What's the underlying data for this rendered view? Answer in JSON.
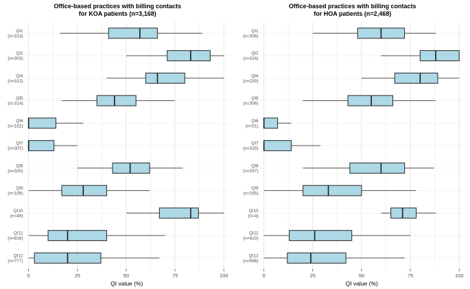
{
  "styles": {
    "box_fill": "#ADD8E6",
    "box_stroke": "#333333",
    "median_color": "#1a1a1a",
    "whisker_color": "#4d4d4d",
    "grid_major": "#e5e5e5",
    "grid_minor": "#f2f2f2",
    "tick_mark_color": "#333333",
    "tick_label_color": "#4d4d4d",
    "category_label_color": "#4d4d4d"
  },
  "chart_data": [
    {
      "type": "boxplot",
      "orientation": "horizontal",
      "title_line1": "Office-based practices with billing contacts",
      "title_line2": "for KOA patients (n=3,168)",
      "xlabel": "QI value (%)",
      "xlim": [
        0,
        100
      ],
      "x_ticks": [
        0,
        25,
        50,
        75,
        100
      ],
      "x_minor_ticks": [
        12.5,
        37.5,
        62.5,
        87.5
      ],
      "grid": true,
      "legend": "none",
      "categories": [
        "QI1",
        "QI2",
        "QI4",
        "QI5",
        "QI6",
        "QI7",
        "QI8",
        "QI9",
        "QI10",
        "QI11",
        "QI12"
      ],
      "ns": [
        "(n=314)",
        "(n=303)",
        "(n=312)",
        "(n=314)",
        "(n=182)",
        "(n=307)",
        "(n=320)",
        "(n=105)",
        "(n=49)",
        "(n=818)",
        "(n=777)"
      ],
      "boxes": [
        {
          "min": 16,
          "q1": 41,
          "median": 57,
          "q3": 66,
          "max": 89
        },
        {
          "min": 50,
          "q1": 71,
          "median": 83,
          "q3": 93,
          "max": 100
        },
        {
          "min": 40,
          "q1": 60,
          "median": 66,
          "q3": 80,
          "max": 100
        },
        {
          "min": 17,
          "q1": 35,
          "median": 44,
          "q3": 55,
          "max": 75
        },
        {
          "min": 0,
          "q1": 0,
          "median": 0,
          "q3": 14,
          "max": 28
        },
        {
          "min": 0,
          "q1": 0,
          "median": 0,
          "q3": 13,
          "max": 25
        },
        {
          "min": 25,
          "q1": 43,
          "median": 52,
          "q3": 62,
          "max": 79
        },
        {
          "min": 0,
          "q1": 17,
          "median": 28,
          "q3": 40,
          "max": 62
        },
        {
          "min": 50,
          "q1": 67,
          "median": 83,
          "q3": 87,
          "max": 100
        },
        {
          "min": 0,
          "q1": 10,
          "median": 20,
          "q3": 40,
          "max": 70
        },
        {
          "min": 0,
          "q1": 3,
          "median": 20,
          "q3": 37,
          "max": 67
        }
      ]
    },
    {
      "type": "boxplot",
      "orientation": "horizontal",
      "title_line1": "Office-based practices with billing contacts",
      "title_line2": "for HOA patients (n=2,468)",
      "xlabel": "QI value (%)",
      "xlim": [
        0,
        100
      ],
      "x_ticks": [
        0,
        25,
        50,
        75,
        100
      ],
      "x_minor_ticks": [
        12.5,
        37.5,
        62.5,
        87.5
      ],
      "grid": true,
      "legend": "none",
      "categories": [
        "QI1",
        "QI2",
        "QI4",
        "QI5",
        "QI6",
        "QI7",
        "QI8",
        "QI9",
        "QI10",
        "QI11",
        "QI12"
      ],
      "ns": [
        "(n=306)",
        "(n=316)",
        "(n=230)",
        "(n=306)",
        "(n=51)",
        "(n=315)",
        "(n=297)",
        "(n=165)",
        "(n=4)",
        "(n=623)",
        "(n=596)"
      ],
      "boxes": [
        {
          "min": 25,
          "q1": 48,
          "median": 60,
          "q3": 72,
          "max": 88
        },
        {
          "min": 60,
          "q1": 80,
          "median": 88,
          "q3": 100,
          "max": 100
        },
        {
          "min": 50,
          "q1": 67,
          "median": 80,
          "q3": 89,
          "max": 100
        },
        {
          "min": 20,
          "q1": 43,
          "median": 55,
          "q3": 66,
          "max": 88
        },
        {
          "min": 0,
          "q1": 0,
          "median": 0,
          "q3": 7,
          "max": 14
        },
        {
          "min": 0,
          "q1": 0,
          "median": 0,
          "q3": 14,
          "max": 29
        },
        {
          "min": 20,
          "q1": 44,
          "median": 60,
          "q3": 72,
          "max": 87
        },
        {
          "min": 0,
          "q1": 20,
          "median": 33,
          "q3": 50,
          "max": 78
        },
        {
          "min": 60,
          "q1": 65,
          "median": 71,
          "q3": 78,
          "max": 88
        },
        {
          "min": 0,
          "q1": 13,
          "median": 26,
          "q3": 45,
          "max": 75
        },
        {
          "min": 0,
          "q1": 12,
          "median": 24,
          "q3": 42,
          "max": 72
        }
      ]
    }
  ]
}
